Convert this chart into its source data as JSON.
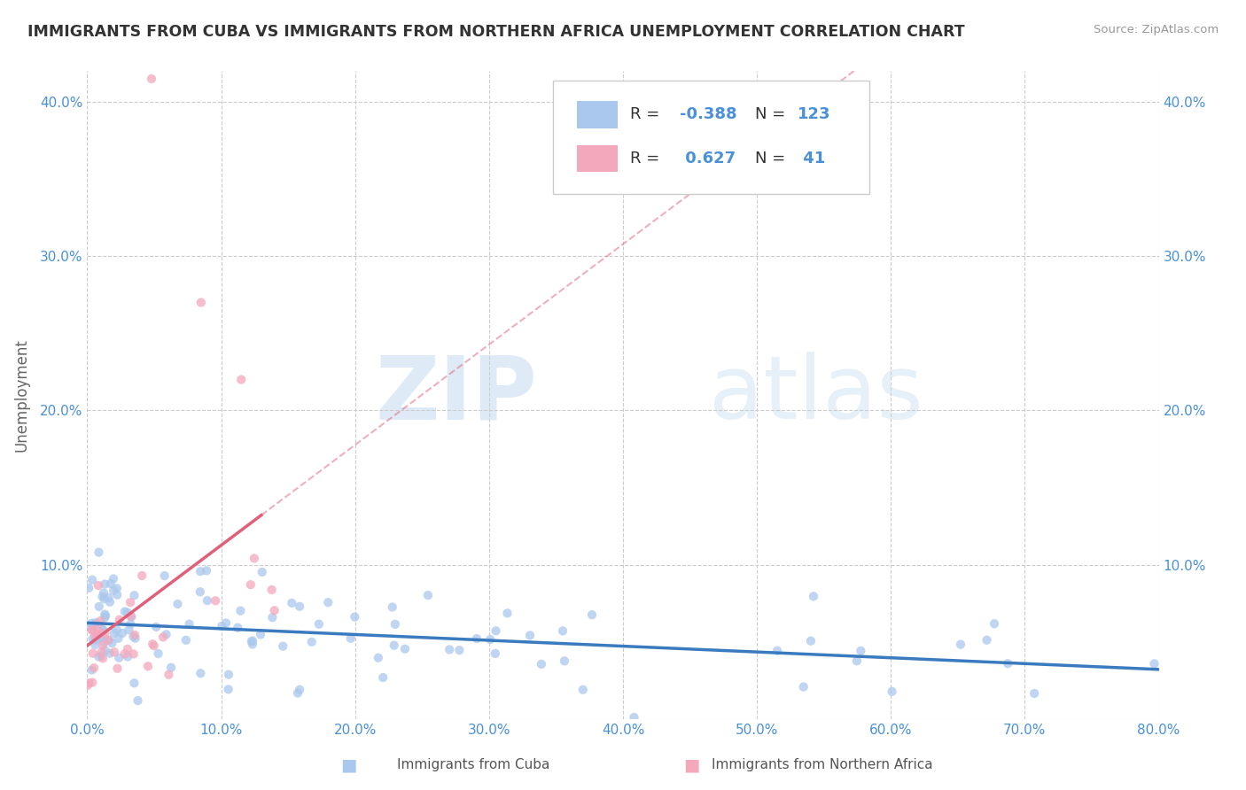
{
  "title": "IMMIGRANTS FROM CUBA VS IMMIGRANTS FROM NORTHERN AFRICA UNEMPLOYMENT CORRELATION CHART",
  "source": "Source: ZipAtlas.com",
  "ylabel": "Unemployment",
  "xlim": [
    0.0,
    0.8
  ],
  "ylim": [
    0.0,
    0.42
  ],
  "xticks": [
    0.0,
    0.1,
    0.2,
    0.3,
    0.4,
    0.5,
    0.6,
    0.7,
    0.8
  ],
  "xticklabels": [
    "0.0%",
    "10.0%",
    "20.0%",
    "30.0%",
    "40.0%",
    "50.0%",
    "60.0%",
    "70.0%",
    "80.0%"
  ],
  "yticks": [
    0.0,
    0.1,
    0.2,
    0.3,
    0.4
  ],
  "yticklabels": [
    "",
    "10.0%",
    "20.0%",
    "30.0%",
    "40.0%"
  ],
  "cuba_color": "#aac8ed",
  "cuba_line_color": "#3a7abf",
  "africa_color": "#f4a8bc",
  "africa_line_color": "#e0607a",
  "cuba_R": -0.388,
  "cuba_N": 123,
  "africa_R": 0.627,
  "africa_N": 41,
  "legend_label_cuba": "Immigrants from Cuba",
  "legend_label_africa": "Immigrants from Northern Africa",
  "watermark_zip": "ZIP",
  "watermark_atlas": "atlas",
  "background_color": "#ffffff",
  "grid_color": "#cccccc",
  "title_color": "#333333",
  "axis_color": "#4a90d9",
  "seed": 99
}
